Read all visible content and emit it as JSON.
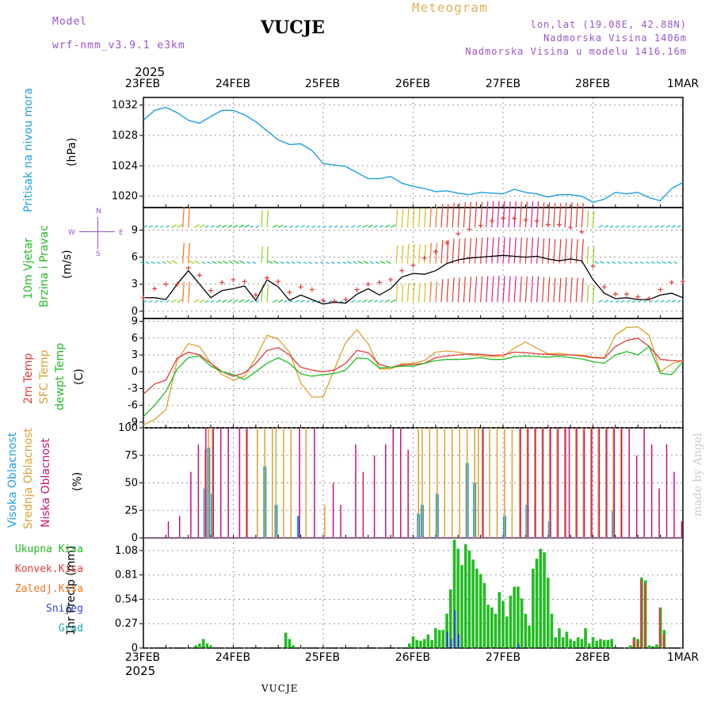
{
  "header": {
    "model_label": "Model",
    "model_name": "wrf-nmm_v3.9.1 e3km",
    "title": "VUCJE",
    "meteogram": "Meteogram",
    "coords": "lon,lat (19.08E, 42.88N)",
    "altitude": "Nadmorska Visina 1406m",
    "model_altitude": "Nadmorska Visina u modelu 1416.16m",
    "year_top": "2025",
    "year_bottom": "2025",
    "footer_station": "VUCJE",
    "watermark": "made by Angel"
  },
  "colors": {
    "pressure": "#1e9fe0",
    "wind_black": "#000000",
    "wind_red": "#e03c3c",
    "t2m": "#e03c3c",
    "tsfc": "#e0a030",
    "dewpt": "#22bb22",
    "high_cloud": "#1e9fe0",
    "mid_cloud": "#e0a030",
    "low_cloud": "#cc1177",
    "total_precip": "#22bb22",
    "conv_precip": "#e03c3c",
    "frz_precip": "#ee7722",
    "snow": "#3344dd",
    "hail": "#22aaaa",
    "grid": "#999999"
  },
  "date_labels": [
    "23FEB",
    "24FEB",
    "25FEB",
    "26FEB",
    "27FEB",
    "28FEB",
    "1MAR"
  ],
  "panels": {
    "pressure": {
      "ylabel": "Pritisak na nivou mora",
      "unit": "(hPa)",
      "ticks": [
        "1032",
        "1028",
        "1024",
        "1020"
      ]
    },
    "wind": {
      "ylabel1": "10m Vjetar",
      "ylabel2": "Brzina i Pravac",
      "unit": "(m/s)",
      "ticks": [
        "9",
        "6",
        "3",
        "0"
      ],
      "compass_w": "W",
      "compass_e": "E",
      "compass_s": "S",
      "compass_n": "N"
    },
    "temp": {
      "ylabel1": "2m Temp",
      "ylabel2": "SFC Temp",
      "ylabel3": "dewpt Temp",
      "unit": "(C)",
      "ticks": [
        "9",
        "6",
        "3",
        "0",
        "-3",
        "-6",
        "-9"
      ]
    },
    "cloud": {
      "ylabel1": "Visoka Oblacnost",
      "ylabel2": "Srednja Oblacnost",
      "ylabel3": "Niska Oblacnost",
      "unit": "(%)",
      "ticks": [
        "100",
        "75",
        "50",
        "25",
        "0"
      ]
    },
    "precip": {
      "legend": [
        "Ukupna Kisa",
        "Konvek.Kisa",
        "Zaledj.Kisa",
        "Snijeg",
        "Grad"
      ],
      "unit": "1hr Precip (mm)",
      "ticks": [
        "1.08",
        "0.81",
        "0.54",
        "0.27",
        "0"
      ]
    }
  },
  "chart_data": [
    {
      "type": "line",
      "title": "Pritisak na nivou mora",
      "ylabel": "(hPa)",
      "ylim": [
        1018.5,
        1033
      ],
      "x": [
        0,
        3,
        6,
        9,
        12,
        15,
        18,
        21,
        24,
        27,
        30,
        33,
        36,
        39,
        42,
        45,
        48,
        51,
        54,
        57,
        60,
        63,
        66,
        69,
        72,
        75,
        78,
        81,
        84,
        87,
        90,
        93,
        96,
        99,
        102,
        105,
        108,
        111,
        114,
        117,
        120,
        123,
        126,
        129,
        132,
        135,
        138,
        141,
        144
      ],
      "values": [
        1030,
        1031.3,
        1031.7,
        1031,
        1030,
        1029.6,
        1030.5,
        1031.3,
        1031.3,
        1030.7,
        1029.8,
        1028.6,
        1027.4,
        1026.8,
        1026.9,
        1026,
        1024.3,
        1024.1,
        1023.9,
        1023.1,
        1022.3,
        1022.3,
        1022.6,
        1021.7,
        1021.3,
        1021,
        1020.6,
        1020.7,
        1020.4,
        1020.2,
        1020.5,
        1020.4,
        1020.3,
        1020.9,
        1020.5,
        1020.3,
        1019.9,
        1020.2,
        1020.2,
        1020,
        1019.2,
        1019.6,
        1020.5,
        1020.3,
        1020.5,
        1019.8,
        1019.4,
        1021,
        1021.8
      ]
    },
    {
      "type": "line",
      "title": "10m Vjetar Brzina i Pravac",
      "ylabel": "(m/s)",
      "ylim": [
        -0.8,
        11.5
      ],
      "x": [
        0,
        3,
        6,
        9,
        12,
        15,
        18,
        21,
        24,
        27,
        30,
        33,
        36,
        39,
        42,
        45,
        48,
        51,
        54,
        57,
        60,
        63,
        66,
        69,
        72,
        75,
        78,
        81,
        84,
        87,
        90,
        93,
        96,
        99,
        102,
        105,
        108,
        111,
        114,
        117,
        120,
        123,
        126,
        129,
        132,
        135,
        138,
        141,
        144
      ],
      "series": [
        {
          "name": "Srednja brzina",
          "values": [
            1.5,
            1.5,
            1.3,
            3,
            4.5,
            3,
            1.5,
            2.3,
            2.5,
            2.8,
            1.2,
            3.5,
            2.7,
            1.2,
            1.8,
            1.3,
            0.8,
            1,
            0.9,
            1.9,
            2.5,
            1.8,
            2.5,
            3.8,
            4.2,
            4.1,
            4.5,
            5.3,
            5.7,
            5.9,
            6,
            6.1,
            6.2,
            6.1,
            6,
            6.1,
            5.8,
            5.6,
            5.8,
            5.6,
            3.5,
            2,
            1.4,
            1.5,
            1.3,
            1.3,
            1.8,
            2,
            1.5
          ]
        },
        {
          "name": "Udari",
          "values": [
            1.5,
            2.5,
            3,
            3,
            4.8,
            4,
            2.3,
            3.2,
            3.5,
            3.3,
            1.8,
            3.7,
            3.3,
            2.1,
            2.7,
            2.4,
            1.2,
            1.1,
            1.3,
            2.4,
            3,
            3.2,
            3.5,
            4.5,
            5.1,
            5.9,
            6.6,
            7.6,
            8.6,
            9.1,
            9.5,
            10,
            10.3,
            10.3,
            10.1,
            10,
            9.6,
            9.6,
            9.3,
            8.8,
            5,
            2.7,
            1.9,
            1.9,
            1.6,
            1.4,
            2.4,
            3.2,
            3.3
          ]
        }
      ]
    },
    {
      "type": "line",
      "title": "2m Temp / SFC Temp / dewpt Temp",
      "ylabel": "(C)",
      "ylim": [
        -10,
        9.5
      ],
      "x": [
        0,
        3,
        6,
        9,
        12,
        15,
        18,
        21,
        24,
        27,
        30,
        33,
        36,
        39,
        42,
        45,
        48,
        51,
        54,
        57,
        60,
        63,
        66,
        69,
        72,
        75,
        78,
        81,
        84,
        87,
        90,
        93,
        96,
        99,
        102,
        105,
        108,
        111,
        114,
        117,
        120,
        123,
        126,
        129,
        132,
        135,
        138,
        141,
        144
      ],
      "series": [
        {
          "name": "2m Temp",
          "values": [
            -4,
            -2.2,
            -1.5,
            2.4,
            3.5,
            3,
            1.5,
            0,
            -0.8,
            -0.2,
            1.5,
            3.8,
            4.3,
            3,
            0.8,
            0.3,
            0,
            0.3,
            1.5,
            3.8,
            3.4,
            1.3,
            0.8,
            1.2,
            1.3,
            1.5,
            2.5,
            2.8,
            3,
            3.2,
            3.1,
            2.9,
            3,
            3.5,
            3.4,
            3.2,
            3.1,
            3,
            3,
            2.8,
            2.5,
            2.4,
            4.5,
            5.6,
            6,
            4.5,
            2.2,
            2,
            1.9
          ]
        },
        {
          "name": "SFC Temp",
          "values": [
            -9.5,
            -8.5,
            -6.8,
            2,
            5,
            4.5,
            1.5,
            -0.5,
            -1.5,
            -0.8,
            2.5,
            6.5,
            5.8,
            3.5,
            -2,
            -4.5,
            -4.5,
            0.5,
            5.2,
            7.5,
            5,
            0.5,
            0.5,
            1.4,
            1.5,
            2,
            3.5,
            3.7,
            3.5,
            3,
            2.8,
            2.7,
            2.7,
            4.2,
            5.3,
            4.2,
            3.2,
            3.3,
            3,
            3,
            2.6,
            2.5,
            6.5,
            7.9,
            8,
            6.5,
            0,
            1.4,
            2
          ]
        },
        {
          "name": "dewpt Temp",
          "values": [
            -8,
            -6,
            -3.5,
            0.5,
            2.5,
            2.8,
            1,
            0,
            -0.5,
            -1.4,
            0,
            1.5,
            2.5,
            1.5,
            -0.4,
            -0.8,
            -0.5,
            -0.3,
            0.3,
            2.5,
            2.3,
            0.7,
            0.8,
            1,
            1,
            1.5,
            2,
            2.2,
            2.2,
            2.3,
            2.5,
            2.2,
            2.2,
            2.7,
            2.8,
            2.7,
            2.6,
            2.8,
            2.5,
            2.3,
            1.8,
            1.5,
            3,
            3.6,
            3,
            4.5,
            -0.3,
            -0.5,
            1.8
          ]
        }
      ]
    },
    {
      "type": "bar",
      "title": "Oblacnost",
      "ylabel": "(%)",
      "ylim": [
        0,
        100
      ],
      "categories": [
        0,
        6,
        9,
        12,
        14,
        16,
        17,
        18,
        20,
        22,
        25,
        27,
        30,
        32,
        34,
        35,
        37,
        39,
        41,
        43,
        45,
        48,
        50,
        52,
        54,
        56,
        58,
        61,
        64,
        66,
        68,
        70,
        72,
        73,
        74,
        76,
        78,
        80,
        82,
        84,
        86,
        88,
        89,
        90,
        92,
        94,
        96,
        98,
        100,
        102,
        104,
        106,
        108,
        110,
        112,
        113,
        115,
        117,
        119,
        121,
        123,
        125,
        127,
        129,
        131,
        133,
        135,
        137,
        139,
        141,
        143
      ],
      "series": [
        {
          "name": "Visoka Oblacnost",
          "values": [
            0,
            0,
            0,
            0,
            0,
            45,
            82,
            40,
            0,
            0,
            0,
            0,
            0,
            65,
            0,
            30,
            0,
            0,
            20,
            0,
            0,
            0,
            0,
            0,
            0,
            0,
            0,
            0,
            0,
            0,
            0,
            0,
            0,
            22,
            30,
            0,
            40,
            0,
            0,
            0,
            68,
            50,
            0,
            0,
            0,
            0,
            20,
            0,
            0,
            30,
            0,
            0,
            15,
            0,
            0,
            0,
            0,
            0,
            0,
            0,
            0,
            25,
            0,
            0,
            0,
            0,
            0,
            0,
            0,
            0,
            0
          ]
        },
        {
          "name": "Srednja Oblacnost",
          "values": [
            0,
            0,
            0,
            0,
            0,
            80,
            100,
            100,
            0,
            0,
            0,
            100,
            100,
            100,
            100,
            100,
            100,
            100,
            0,
            100,
            0,
            30,
            0,
            0,
            0,
            0,
            0,
            0,
            0,
            0,
            0,
            0,
            0,
            100,
            100,
            100,
            100,
            100,
            100,
            100,
            100,
            100,
            100,
            100,
            100,
            100,
            100,
            100,
            100,
            100,
            100,
            100,
            100,
            100,
            100,
            0,
            100,
            100,
            100,
            100,
            100,
            100,
            100,
            0,
            0,
            0,
            0,
            0,
            0,
            0,
            0
          ]
        },
        {
          "name": "Niska Oblacnost",
          "values": [
            0,
            15,
            20,
            60,
            85,
            100,
            0,
            100,
            100,
            100,
            100,
            100,
            0,
            0,
            0,
            0,
            0,
            0,
            100,
            0,
            100,
            0,
            50,
            30,
            0,
            85,
            60,
            75,
            85,
            100,
            100,
            80,
            0,
            0,
            0,
            0,
            0,
            0,
            0,
            0,
            0,
            0,
            0,
            100,
            0,
            0,
            0,
            0,
            100,
            100,
            100,
            100,
            100,
            100,
            100,
            100,
            100,
            100,
            100,
            100,
            100,
            100,
            100,
            100,
            75,
            100,
            85,
            45,
            85,
            60,
            15
          ]
        }
      ]
    },
    {
      "type": "bar",
      "title": "1hr Precip",
      "ylabel": "1hr Precip (mm)",
      "ylim": [
        0,
        1.22
      ],
      "categories": [
        14,
        15,
        16,
        17,
        18,
        38,
        39,
        40,
        71,
        72,
        73,
        74,
        75,
        76,
        77,
        78,
        79,
        80,
        81,
        82,
        83,
        84,
        85,
        86,
        87,
        88,
        89,
        90,
        91,
        92,
        93,
        94,
        95,
        96,
        97,
        98,
        99,
        100,
        101,
        102,
        103,
        104,
        105,
        106,
        107,
        108,
        109,
        110,
        111,
        112,
        113,
        114,
        115,
        116,
        117,
        118,
        119,
        120,
        121,
        122,
        123,
        124,
        125,
        126,
        127,
        128,
        129,
        130,
        131,
        132,
        133,
        134,
        135,
        136,
        137,
        138,
        139,
        140,
        141,
        142
      ],
      "series": [
        {
          "name": "Ukupna Kisa",
          "values": [
            0.03,
            0.05,
            0.1,
            0.05,
            0.02,
            0.17,
            0.1,
            0.03,
            0.05,
            0.13,
            0.09,
            0.08,
            0.1,
            0.15,
            0.09,
            0.22,
            0.2,
            0.2,
            0.38,
            0.65,
            1.2,
            1.1,
            0.92,
            1.15,
            1.08,
            0.98,
            0.88,
            0.82,
            0.72,
            0.48,
            0.45,
            0.38,
            0.62,
            0.52,
            0.35,
            0.58,
            0.68,
            0.68,
            0.55,
            0.38,
            0.25,
            0.88,
            0.99,
            1.1,
            1.06,
            0.78,
            0.38,
            0.12,
            0.22,
            0.12,
            0.18,
            0.1,
            0.08,
            0.12,
            0.1,
            0.22,
            0.05,
            0.12,
            0.08,
            0.1,
            0.09,
            0.09,
            0.1,
            0,
            0,
            0,
            0,
            0.03,
            0.12,
            0.1,
            0.78,
            0.75,
            0.03,
            0.02,
            0.04,
            0.45,
            0.2,
            0,
            0,
            0
          ]
        },
        {
          "name": "Konvek.Kisa",
          "values": [
            0,
            0,
            0,
            0,
            0,
            0,
            0,
            0,
            0,
            0,
            0,
            0,
            0,
            0,
            0,
            0,
            0,
            0,
            0,
            0,
            0,
            0,
            0,
            0,
            0,
            0,
            0,
            0,
            0,
            0,
            0,
            0,
            0,
            0,
            0,
            0,
            0,
            0,
            0,
            0,
            0,
            0,
            0,
            0,
            0,
            0,
            0,
            0,
            0,
            0,
            0,
            0,
            0,
            0,
            0,
            0,
            0,
            0,
            0,
            0,
            0,
            0,
            0,
            0,
            0,
            0,
            0,
            0,
            0.1,
            0.08,
            0.76,
            0.72,
            0,
            0,
            0,
            0.44,
            0.15,
            0,
            0,
            0
          ]
        },
        {
          "name": "Snijeg",
          "values": [
            0,
            0,
            0,
            0,
            0,
            0,
            0,
            0,
            0,
            0,
            0,
            0,
            0,
            0,
            0,
            0,
            0,
            0,
            0.18,
            0.1,
            0.42,
            0.15,
            0,
            0,
            0,
            0,
            0,
            0,
            0,
            0,
            0,
            0,
            0,
            0,
            0,
            0,
            0,
            0.05,
            0,
            0,
            0,
            0,
            0,
            0,
            0,
            0,
            0,
            0,
            0,
            0,
            0,
            0,
            0,
            0,
            0,
            0,
            0,
            0,
            0,
            0,
            0,
            0,
            0,
            0,
            0,
            0,
            0,
            0,
            0,
            0,
            0,
            0,
            0,
            0,
            0,
            0,
            0,
            0,
            0,
            0
          ]
        }
      ]
    }
  ]
}
